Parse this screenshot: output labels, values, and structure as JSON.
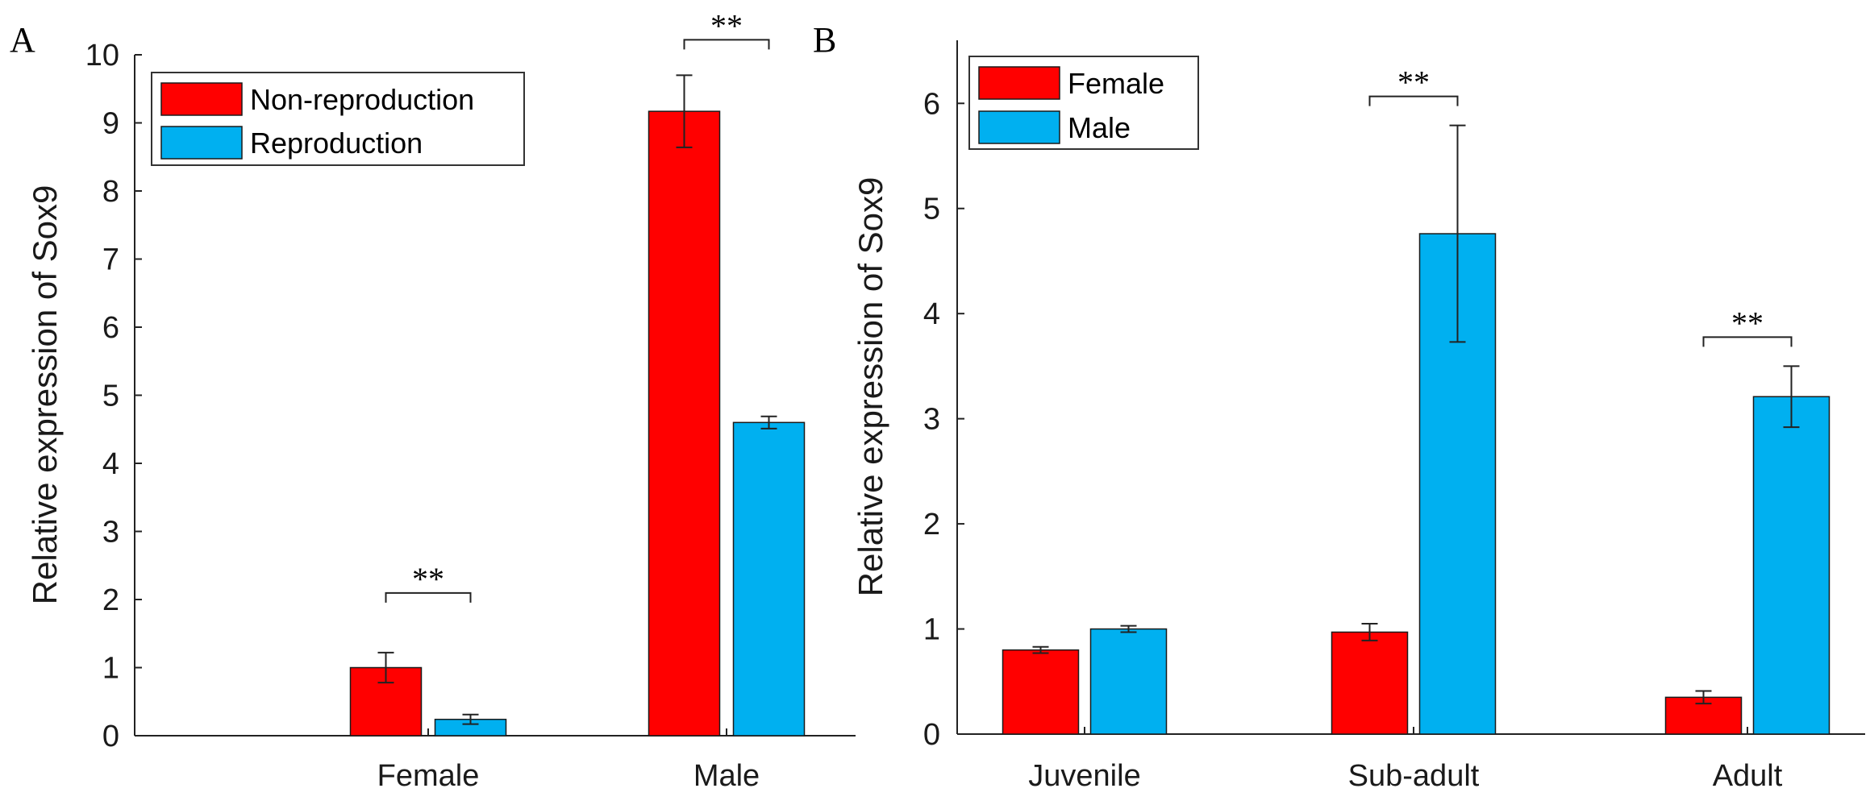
{
  "chart_data": [
    {
      "panel": "A",
      "type": "bar",
      "categories": [
        "Female",
        "Male"
      ],
      "series": [
        {
          "name": "Non-reproduction",
          "color": "#ff0000",
          "values": [
            1.0,
            9.17
          ],
          "errors": [
            0.22,
            0.53
          ]
        },
        {
          "name": "Reproduction",
          "color": "#00b0f0",
          "values": [
            0.24,
            4.6
          ],
          "errors": [
            0.07,
            0.09
          ]
        }
      ],
      "title": "",
      "xlabel": "",
      "ylabel": "Relative expression of Sox9",
      "ylim": [
        0,
        10
      ],
      "yticks": [
        0,
        1,
        2,
        3,
        4,
        5,
        6,
        7,
        8,
        9,
        10
      ],
      "legend_position": "top-left",
      "significance": [
        {
          "category": "Female",
          "label": "**"
        },
        {
          "category": "Male",
          "label": "**"
        }
      ],
      "grid": false
    },
    {
      "panel": "B",
      "type": "bar",
      "categories": [
        "Juvenile",
        "Sub-adult",
        "Adult"
      ],
      "series": [
        {
          "name": "Female",
          "color": "#ff0000",
          "values": [
            0.8,
            0.97,
            0.35
          ],
          "errors": [
            0.03,
            0.08,
            0.06
          ]
        },
        {
          "name": "Male",
          "color": "#00b0f0",
          "values": [
            1.0,
            4.76,
            3.21
          ],
          "errors": [
            0.03,
            1.03,
            0.29
          ]
        }
      ],
      "title": "",
      "xlabel": "",
      "ylabel": "Relative expression of Sox9",
      "ylim": [
        0,
        6.6
      ],
      "yticks": [
        0,
        1,
        2,
        3,
        4,
        5,
        6
      ],
      "legend_position": "top-left",
      "significance": [
        {
          "category": "Sub-adult",
          "label": "**"
        },
        {
          "category": "Adult",
          "label": "**"
        }
      ],
      "grid": false
    }
  ]
}
